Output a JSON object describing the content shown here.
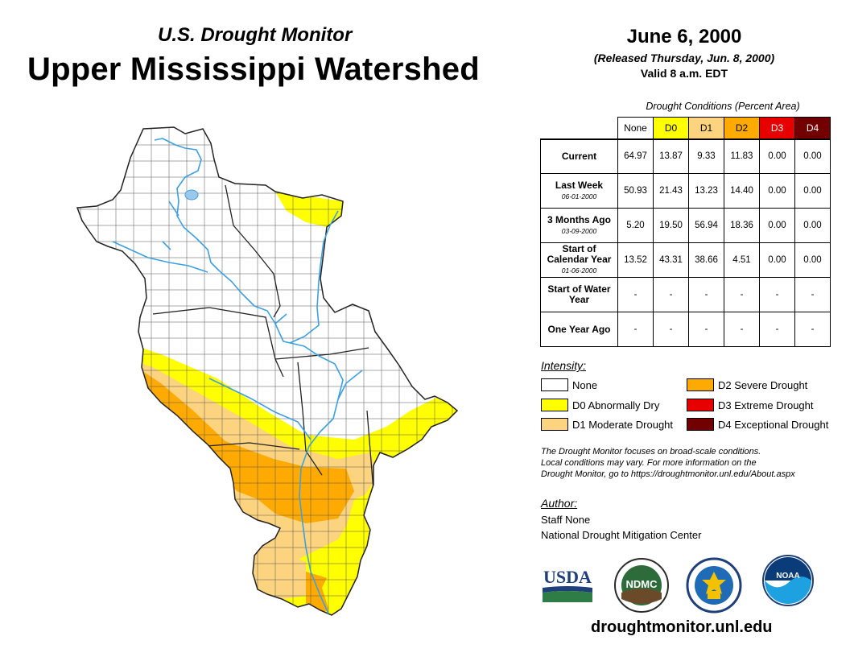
{
  "header": {
    "subtitle": "U.S. Drought Monitor",
    "title": "Upper Mississippi Watershed"
  },
  "date_block": {
    "date": "June 6, 2000",
    "released": "(Released Thursday, Jun. 8, 2000)",
    "valid": "Valid 8 a.m. EDT"
  },
  "table": {
    "caption": "Drought Conditions (Percent Area)",
    "columns": [
      "None",
      "D0",
      "D1",
      "D2",
      "D3",
      "D4"
    ],
    "rows": [
      {
        "label": "Current",
        "date": "",
        "values": [
          "64.97",
          "13.87",
          "9.33",
          "11.83",
          "0.00",
          "0.00"
        ]
      },
      {
        "label": "Last Week",
        "date": "06-01-2000",
        "values": [
          "50.93",
          "21.43",
          "13.23",
          "14.40",
          "0.00",
          "0.00"
        ]
      },
      {
        "label": "3 Months Ago",
        "date": "03-09-2000",
        "values": [
          "5.20",
          "19.50",
          "56.94",
          "18.36",
          "0.00",
          "0.00"
        ]
      },
      {
        "label": "Start of Calendar Year",
        "date": "01-06-2000",
        "values": [
          "13.52",
          "43.31",
          "38.66",
          "4.51",
          "0.00",
          "0.00"
        ]
      },
      {
        "label": "Start of Water Year",
        "date": "",
        "values": [
          "-",
          "-",
          "-",
          "-",
          "-",
          "-"
        ]
      },
      {
        "label": "One Year Ago",
        "date": "",
        "values": [
          "-",
          "-",
          "-",
          "-",
          "-",
          "-"
        ]
      }
    ]
  },
  "legend": {
    "title": "Intensity:",
    "items": [
      {
        "label": "None",
        "color": "#ffffff"
      },
      {
        "label": "D0 Abnormally Dry",
        "color": "#ffff00"
      },
      {
        "label": "D1 Moderate Drought",
        "color": "#fcd37f"
      },
      {
        "label": "D2 Severe Drought",
        "color": "#ffaa00"
      },
      {
        "label": "D3 Extreme Drought",
        "color": "#e60000"
      },
      {
        "label": "D4 Exceptional Drought",
        "color": "#730000"
      }
    ]
  },
  "note": {
    "line1": "The Drought Monitor focuses on broad-scale conditions.",
    "line2": "Local conditions may vary. For more information on the",
    "line3": "Drought Monitor, go to https://droughtmonitor.unl.edu/About.aspx"
  },
  "author": {
    "title": "Author:",
    "name": "Staff None",
    "org": "National Drought Mitigation Center"
  },
  "logos": {
    "usda": "USDA",
    "ndmc": "NDMC",
    "noaa": "NOAA"
  },
  "website": "droughtmonitor.unl.edu",
  "map_colors": {
    "none": "#ffffff",
    "d0": "#ffff00",
    "d1": "#fcd37f",
    "d2": "#ffaa00",
    "water": "#3ea0e0",
    "border": "#555555"
  }
}
